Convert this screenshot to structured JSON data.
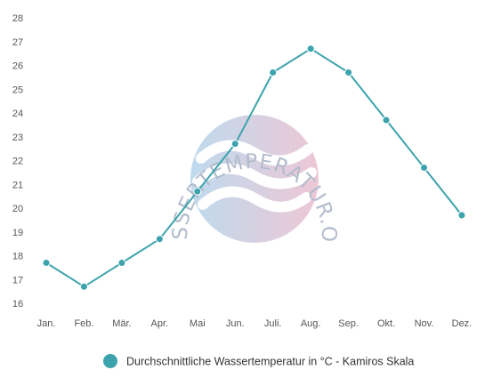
{
  "chart_data": {
    "type": "line",
    "categories": [
      "Jan.",
      "Feb.",
      "Mär.",
      "Apr.",
      "Mai",
      "Jun.",
      "Juli.",
      "Aug.",
      "Sep.",
      "Okt.",
      "Nov.",
      "Dez."
    ],
    "series": [
      {
        "name": "Durchschnittliche Wassertemperatur in °C - Kamiros Skala",
        "values": [
          17.7,
          16.7,
          17.7,
          18.7,
          20.7,
          22.7,
          25.7,
          26.7,
          25.7,
          23.7,
          21.7,
          19.7
        ],
        "color": "#3ca3ad"
      }
    ],
    "ylim": [
      16,
      28
    ],
    "yticks": [
      16,
      17,
      18,
      19,
      20,
      21,
      22,
      23,
      24,
      25,
      26,
      27,
      28
    ],
    "grid": false,
    "legend_position": "bottom",
    "legend_marker_color": "#3ca3ad"
  },
  "watermark": {
    "text": "WASSERTEMPERATUR.ORG",
    "color_left": "#a9cfe8",
    "color_right": "#e8b5c8"
  }
}
